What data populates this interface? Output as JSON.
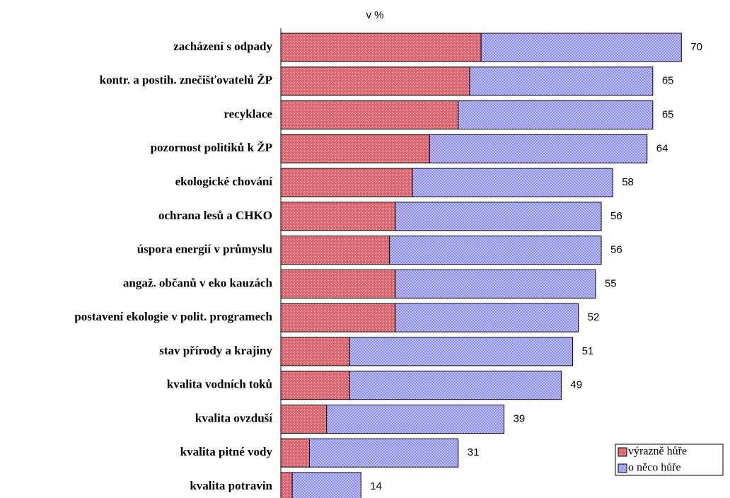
{
  "chart_data": {
    "type": "stacked-barh",
    "subtitle": "v %",
    "categories": [
      "zacházení s odpady",
      "kontr. a postih. znečišťovatelů ŽP",
      "recyklace",
      "pozornost politiků k ŽP",
      "ekologické chování",
      "ochrana lesů a CHKO",
      "úspora energií v průmyslu",
      "angaž. občanů v eko kauzách",
      "postavení ekologie v polit. programech",
      "stav přírody a krajiny",
      "kvalita vodních toků",
      "kvalita ovzduší",
      "kvalita pitné vody",
      "kvalita potravin"
    ],
    "series": [
      {
        "name": "výrazně hůře",
        "color": "#e0404a",
        "values": [
          35,
          33,
          31,
          26,
          23,
          20,
          19,
          20,
          20,
          12,
          12,
          8,
          5,
          2
        ]
      },
      {
        "name": "o něco hůře",
        "color": "#8c8cee",
        "values": [
          35,
          32,
          34,
          38,
          35,
          36,
          37,
          35,
          32,
          39,
          37,
          31,
          26,
          12
        ]
      }
    ],
    "total_labels": [
      70,
      65,
      65,
      64,
      58,
      56,
      56,
      55,
      52,
      51,
      49,
      39,
      31,
      14
    ],
    "xlim": [
      0,
      78
    ],
    "legend": "lower right"
  }
}
